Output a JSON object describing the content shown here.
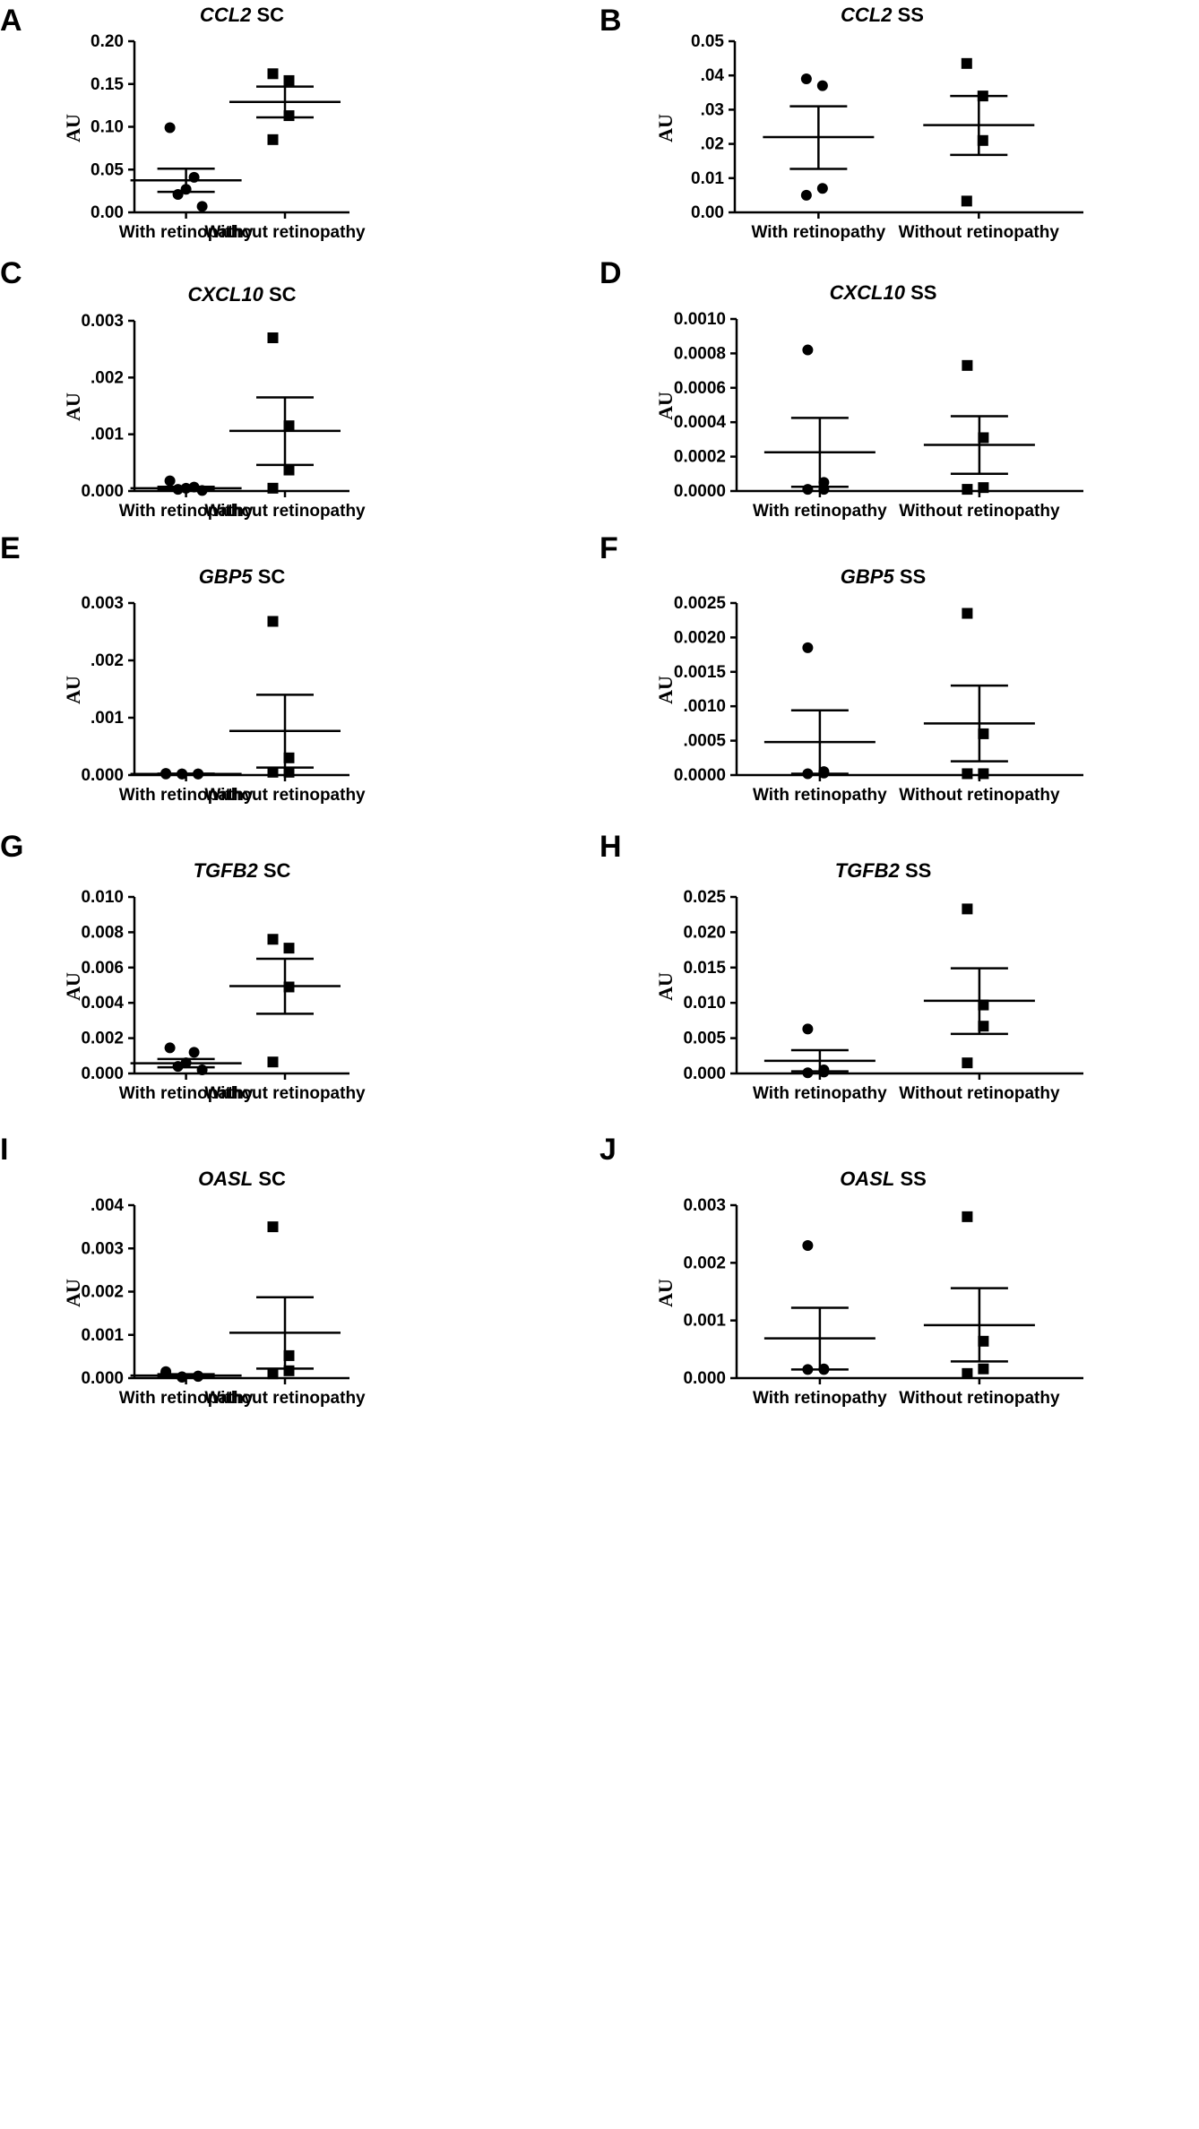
{
  "colors": {
    "ink": "#000000",
    "background": "#ffffff"
  },
  "chart_data": [
    {
      "type": "scatter",
      "panel": "A",
      "gene": "CCL2",
      "tissue": "SC",
      "ylabel": "AU",
      "ylim": [
        0,
        0.2
      ],
      "yticks": [
        "0.00",
        "0.05",
        "0.10",
        "0.15",
        "0.20"
      ],
      "categories": [
        "With retinopathy",
        "Without retinopathy"
      ],
      "series": [
        {
          "values": [
            0.099,
            0.041,
            0.027,
            0.021,
            0.007
          ],
          "mean": 0.0375,
          "sem_low": 0.024,
          "sem_high": 0.051,
          "marker": "circle"
        },
        {
          "values": [
            0.162,
            0.154,
            0.113,
            0.085
          ],
          "mean": 0.129,
          "sem_low": 0.111,
          "sem_high": 0.147,
          "marker": "square"
        }
      ]
    },
    {
      "type": "scatter",
      "panel": "B",
      "gene": "CCL2",
      "tissue": "SS",
      "ylabel": "AU",
      "ylim": [
        0,
        0.05
      ],
      "yticks": [
        "0.00",
        "0.01",
        ".02",
        ".03",
        ".04",
        "0.05"
      ],
      "categories": [
        "With retinopathy",
        "Without retinopathy"
      ],
      "series": [
        {
          "values": [
            0.039,
            0.037,
            0.007,
            0.005
          ],
          "mean": 0.022,
          "sem_low": 0.0127,
          "sem_high": 0.031,
          "marker": "circle"
        },
        {
          "values": [
            0.0435,
            0.034,
            0.021,
            0.0033
          ],
          "mean": 0.0255,
          "sem_low": 0.0168,
          "sem_high": 0.034,
          "marker": "square"
        }
      ]
    },
    {
      "type": "scatter",
      "panel": "C",
      "gene": "CXCL10",
      "tissue": "SC",
      "ylabel": "AU",
      "ylim": [
        0,
        0.003
      ],
      "yticks": [
        "0.000",
        ".001",
        ".002",
        "0.003"
      ],
      "categories": [
        "With retinopathy",
        "Without retinopathy"
      ],
      "series": [
        {
          "values": [
            0.00018,
            7e-05,
            5e-05,
            3e-05,
            1e-05
          ],
          "mean": 5e-05,
          "sem_low": 2.5e-05,
          "sem_high": 7.5e-05,
          "marker": "circle"
        },
        {
          "values": [
            0.0027,
            0.00115,
            0.00037,
            5e-05
          ],
          "mean": 0.00106,
          "sem_low": 0.00046,
          "sem_high": 0.00165,
          "marker": "square"
        }
      ]
    },
    {
      "type": "scatter",
      "panel": "D",
      "gene": "CXCL10",
      "tissue": "SS",
      "ylabel": "AU",
      "ylim": [
        0,
        0.001
      ],
      "yticks": [
        "0.0000",
        "0.0002",
        "0.0004",
        "0.0006",
        "0.0008",
        "0.0010"
      ],
      "categories": [
        "With retinopathy",
        "Without retinopathy"
      ],
      "series": [
        {
          "values": [
            0.00082,
            5e-05,
            1e-05,
            1e-05
          ],
          "mean": 0.000225,
          "sem_low": 2.5e-05,
          "sem_high": 0.000425,
          "marker": "circle"
        },
        {
          "values": [
            0.00073,
            0.00031,
            2e-05,
            1e-05
          ],
          "mean": 0.000268,
          "sem_low": 0.0001,
          "sem_high": 0.000435,
          "marker": "square"
        }
      ]
    },
    {
      "type": "scatter",
      "panel": "E",
      "gene": "GBP5",
      "tissue": "SC",
      "ylabel": "AU",
      "ylim": [
        0,
        0.003
      ],
      "yticks": [
        "0.000",
        ".001",
        ".002",
        "0.003"
      ],
      "categories": [
        "With retinopathy",
        "Without retinopathy"
      ],
      "series": [
        {
          "values": [
            2e-05,
            2e-05,
            2e-05,
            2e-05,
            2e-05,
            3e-05
          ],
          "mean": 2e-05,
          "sem_low": 1.5e-05,
          "sem_high": 2.5e-05,
          "marker": "circle"
        },
        {
          "values": [
            0.00268,
            0.0003,
            5e-05,
            5e-05
          ],
          "mean": 0.00077,
          "sem_low": 0.00013,
          "sem_high": 0.0014,
          "marker": "square"
        }
      ]
    },
    {
      "type": "scatter",
      "panel": "F",
      "gene": "GBP5",
      "tissue": "SS",
      "ylabel": "AU",
      "ylim": [
        0,
        0.0025
      ],
      "yticks": [
        "0.0000",
        ".0005",
        ".0010",
        "0.0015",
        "0.0020",
        "0.0025"
      ],
      "categories": [
        "With retinopathy",
        "Without retinopathy"
      ],
      "series": [
        {
          "values": [
            0.00185,
            5e-05,
            3e-05,
            2e-05
          ],
          "mean": 0.00048,
          "sem_low": 2e-05,
          "sem_high": 0.00094,
          "marker": "circle"
        },
        {
          "values": [
            0.00235,
            0.0006,
            2e-05,
            2e-05
          ],
          "mean": 0.00075,
          "sem_low": 0.0002,
          "sem_high": 0.0013,
          "marker": "square"
        }
      ]
    },
    {
      "type": "scatter",
      "panel": "G",
      "gene": "TGFB2",
      "tissue": "SC",
      "ylabel": "AU",
      "ylim": [
        0,
        0.01
      ],
      "yticks": [
        "0.000",
        "0.002",
        "0.004",
        "0.006",
        "0.008",
        "0.010"
      ],
      "categories": [
        "With retinopathy",
        "Without retinopathy"
      ],
      "series": [
        {
          "values": [
            0.00145,
            0.0012,
            0.0006,
            0.0004,
            0.0002
          ],
          "mean": 0.00058,
          "sem_low": 0.00035,
          "sem_high": 0.00082,
          "marker": "circle"
        },
        {
          "values": [
            0.0076,
            0.0071,
            0.0049,
            0.00065
          ],
          "mean": 0.00495,
          "sem_low": 0.00338,
          "sem_high": 0.0065,
          "marker": "square"
        }
      ]
    },
    {
      "type": "scatter",
      "panel": "H",
      "gene": "TGFB2",
      "tissue": "SS",
      "ylabel": "AU",
      "ylim": [
        0,
        0.025
      ],
      "yticks": [
        "0.000",
        "0.005",
        "0.010",
        "0.015",
        "0.020",
        "0.025"
      ],
      "categories": [
        "With retinopathy",
        "Without retinopathy"
      ],
      "series": [
        {
          "values": [
            0.0063,
            0.0005,
            0.0002,
            0.0001
          ],
          "mean": 0.0018,
          "sem_low": 0.0003,
          "sem_high": 0.0033,
          "marker": "circle"
        },
        {
          "values": [
            0.0233,
            0.0097,
            0.0067,
            0.0015
          ],
          "mean": 0.0103,
          "sem_low": 0.0056,
          "sem_high": 0.0149,
          "marker": "square"
        }
      ]
    },
    {
      "type": "scatter",
      "panel": "I",
      "gene": "OASL",
      "tissue": "SC",
      "ylabel": "AU",
      "ylim": [
        0,
        0.004
      ],
      "yticks": [
        "0.000",
        "0.001",
        "0.002",
        "0.003",
        ".004"
      ],
      "categories": [
        "With retinopathy",
        "Without retinopathy"
      ],
      "series": [
        {
          "values": [
            0.00012,
            5e-05,
            3e-05,
            2e-05,
            4e-05,
            0.00015
          ],
          "mean": 6e-05,
          "sem_low": 3e-05,
          "sem_high": 9e-05,
          "marker": "circle"
        },
        {
          "values": [
            0.0035,
            0.00052,
            0.00017,
            0.0001
          ],
          "mean": 0.00105,
          "sem_low": 0.00022,
          "sem_high": 0.00187,
          "marker": "square"
        }
      ]
    },
    {
      "type": "scatter",
      "panel": "J",
      "gene": "OASL",
      "tissue": "SS",
      "ylabel": "AU",
      "ylim": [
        0,
        0.003
      ],
      "yticks": [
        "0.000",
        "0.001",
        "0.002",
        "0.003"
      ],
      "categories": [
        "With retinopathy",
        "Without retinopathy"
      ],
      "series": [
        {
          "values": [
            0.0023,
            0.00016,
            0.00015,
            0.00015
          ],
          "mean": 0.00069,
          "sem_low": 0.00015,
          "sem_high": 0.00122,
          "marker": "circle"
        },
        {
          "values": [
            0.0028,
            0.00064,
            0.00016,
            8e-05
          ],
          "mean": 0.00092,
          "sem_low": 0.00029,
          "sem_high": 0.00156,
          "marker": "square"
        }
      ]
    }
  ]
}
